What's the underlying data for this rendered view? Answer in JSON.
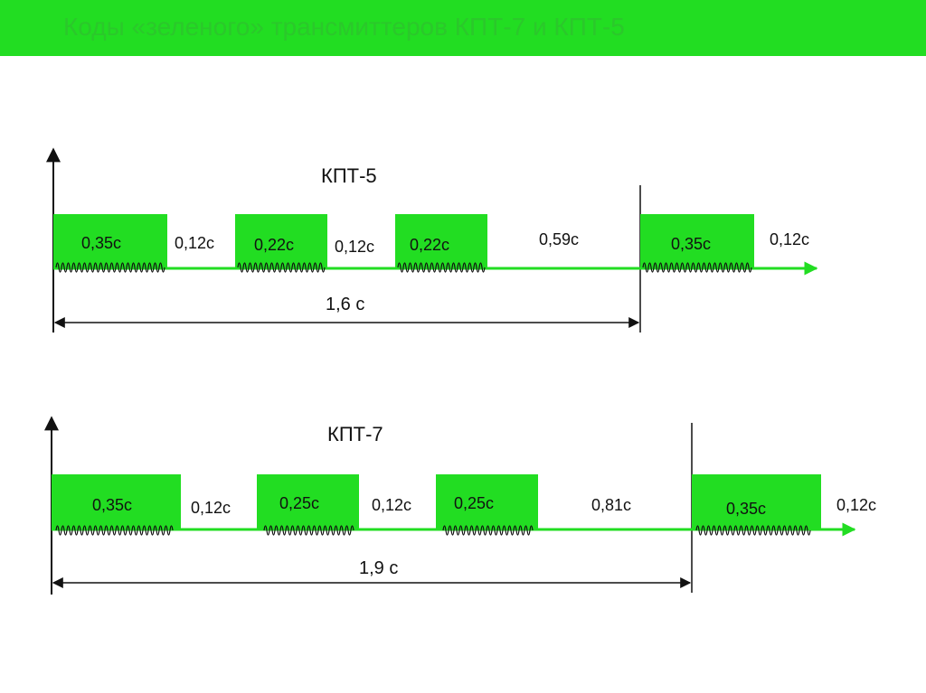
{
  "title": "Коды «зеленого» трансмиттеров КПТ-7 и КПТ-5",
  "colors": {
    "green": "#22dd22",
    "title_text": "#2bc82b",
    "ink": "#111111"
  },
  "timelines": [
    {
      "name": "КПТ-5",
      "total_label": "1,6 с",
      "pulse_labels": [
        "0,35с",
        "0,22с",
        "0,22с",
        "0,35с"
      ],
      "gap_labels": [
        "0,12с",
        "0,12с",
        "0,59с",
        "0,12с"
      ]
    },
    {
      "name": "КПТ-7",
      "total_label": "1,9 с",
      "pulse_labels": [
        "0,35с",
        "0,25с",
        "0,25с",
        "0,35с"
      ],
      "gap_labels": [
        "0,12с",
        "0,12с",
        "0,81с",
        "0,12с"
      ]
    }
  ]
}
